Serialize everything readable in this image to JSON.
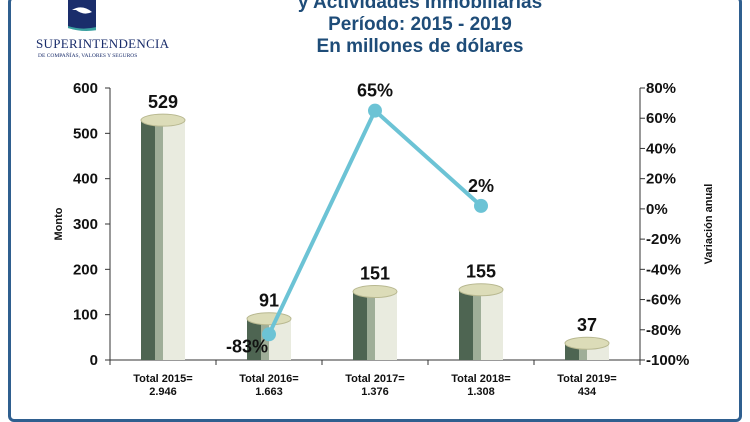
{
  "header": {
    "title_lines": [
      "y Actividades Inmobiliarias",
      "Período: 2015 - 2019",
      "En millones de dólares"
    ],
    "logo_name": "SUPERINTENDENCIA",
    "logo_sub": "DE COMPAÑÍAS, VALORES Y SEGUROS"
  },
  "chart_data": {
    "type": "bar+line",
    "categories": [
      "Total 2015=\n2.946",
      "Total 2016=\n1.663",
      "Total 2017=\n1.376",
      "Total 2018=\n1.308",
      "Total 2019=\n434"
    ],
    "category_lines": [
      [
        "Total 2015=",
        "2.946"
      ],
      [
        "Total 2016=",
        "1.663"
      ],
      [
        "Total 2017=",
        "1.376"
      ],
      [
        "Total 2018=",
        "1.308"
      ],
      [
        "Total 2019=",
        "434"
      ]
    ],
    "ylabel": "Monto",
    "y2label": "Variación anual",
    "ylim": [
      0,
      600
    ],
    "yticks": [
      "0",
      "100",
      "200",
      "300",
      "400",
      "500",
      "600"
    ],
    "y2lim": [
      -100,
      80
    ],
    "y2ticks": [
      "-100%",
      "-80%",
      "-60%",
      "-40%",
      "-20%",
      "0%",
      "20%",
      "40%",
      "60%",
      "80%"
    ],
    "series": [
      {
        "type": "bar",
        "values": [
          529,
          91,
          151,
          155,
          37
        ],
        "labels": [
          "529",
          "91",
          "151",
          "155",
          "37"
        ]
      },
      {
        "type": "line",
        "values": [
          null,
          -83,
          65,
          2,
          null
        ],
        "labels": [
          "",
          "-83%",
          "65%",
          "2%",
          ""
        ],
        "color": "#6cc3d5"
      }
    ],
    "grid": false
  }
}
